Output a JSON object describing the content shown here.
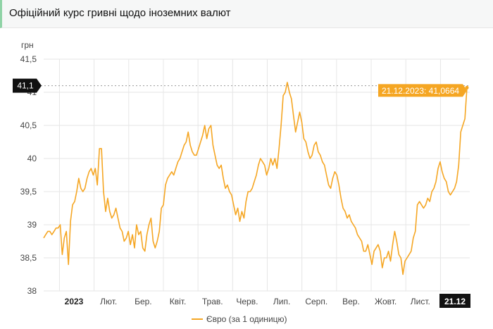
{
  "header": {
    "title": "Офіційний курс гривні щодо іноземних валют"
  },
  "chart_data": {
    "type": "line",
    "title": "",
    "ylabel": "грн",
    "xlabel": "",
    "ylim": [
      38,
      41.5
    ],
    "yticks": [
      "38",
      "38,5",
      "39",
      "39,5",
      "40",
      "40,5",
      "41",
      "41,5"
    ],
    "ytick_values": [
      38,
      38.5,
      39,
      39.5,
      40,
      40.5,
      41,
      41.5
    ],
    "xticks": [
      {
        "label": "2023",
        "bold": true
      },
      {
        "label": "Лют.",
        "bold": false
      },
      {
        "label": "Бер.",
        "bold": false
      },
      {
        "label": "Квіт.",
        "bold": false
      },
      {
        "label": "Трав.",
        "bold": false
      },
      {
        "label": "Черв.",
        "bold": false
      },
      {
        "label": "Лип.",
        "bold": false
      },
      {
        "label": "Серп.",
        "bold": false
      },
      {
        "label": "Вер.",
        "bold": false
      },
      {
        "label": "Жовт.",
        "bold": false
      },
      {
        "label": "Лист.",
        "bold": false
      },
      {
        "label": "21.12",
        "bold": true,
        "highlight": true
      }
    ],
    "grid": true,
    "legend_position": "bottom",
    "series": [
      {
        "name": "Євро (за 1 одиницю)",
        "color": "#f5a623",
        "values": [
          38.8,
          38.85,
          38.9,
          38.9,
          38.85,
          38.9,
          38.95,
          38.95,
          39.0,
          38.55,
          38.8,
          38.9,
          38.4,
          39.05,
          39.3,
          39.35,
          39.5,
          39.7,
          39.55,
          39.5,
          39.55,
          39.7,
          39.8,
          39.85,
          39.75,
          39.85,
          39.6,
          40.15,
          40.15,
          39.5,
          39.2,
          39.4,
          39.2,
          39.1,
          39.15,
          39.25,
          39.1,
          38.95,
          38.9,
          38.75,
          38.8,
          38.9,
          38.7,
          38.85,
          38.65,
          39.0,
          38.85,
          38.9,
          38.65,
          38.6,
          38.85,
          39.0,
          39.1,
          38.75,
          38.65,
          38.75,
          38.9,
          39.25,
          39.3,
          39.6,
          39.7,
          39.75,
          39.8,
          39.75,
          39.85,
          39.95,
          40.0,
          40.1,
          40.2,
          40.25,
          40.4,
          40.2,
          40.1,
          40.05,
          40.05,
          40.15,
          40.25,
          40.35,
          40.5,
          40.3,
          40.45,
          40.5,
          40.2,
          40.05,
          39.9,
          39.85,
          39.9,
          39.7,
          39.55,
          39.6,
          39.5,
          39.45,
          39.3,
          39.15,
          39.25,
          39.05,
          39.2,
          39.1,
          39.35,
          39.5,
          39.5,
          39.55,
          39.65,
          39.75,
          39.9,
          40.0,
          39.95,
          39.9,
          39.75,
          39.85,
          40.0,
          39.9,
          40.0,
          39.85,
          40.15,
          40.5,
          40.95,
          41.0,
          41.15,
          41.0,
          40.9,
          40.65,
          40.4,
          40.55,
          40.7,
          40.55,
          40.3,
          40.25,
          40.1,
          40.0,
          40.05,
          40.2,
          40.25,
          40.1,
          40.05,
          39.95,
          39.9,
          39.75,
          39.6,
          39.55,
          39.7,
          39.8,
          39.75,
          39.6,
          39.4,
          39.25,
          39.2,
          39.1,
          39.15,
          39.05,
          39.0,
          38.95,
          38.85,
          38.8,
          38.75,
          38.6,
          38.6,
          38.7,
          38.55,
          38.4,
          38.6,
          38.65,
          38.7,
          38.6,
          38.35,
          38.5,
          38.5,
          38.6,
          38.45,
          38.7,
          38.9,
          38.75,
          38.55,
          38.5,
          38.25,
          38.45,
          38.5,
          38.55,
          38.6,
          38.8,
          38.9,
          39.3,
          39.35,
          39.3,
          39.25,
          39.3,
          39.4,
          39.35,
          39.5,
          39.55,
          39.65,
          39.85,
          39.95,
          39.8,
          39.7,
          39.65,
          39.5,
          39.45,
          39.5,
          39.55,
          39.65,
          39.9,
          40.4,
          40.5,
          40.6,
          41.07
        ]
      }
    ],
    "tooltip": {
      "date": "21.12.2023",
      "value": "41,0664",
      "text": "21.12.2023: 41,0664"
    },
    "crosshair_label": "41,1",
    "crosshair_value": 41.1
  },
  "colors": {
    "line": "#f5a623",
    "grid": "#e6e6e6",
    "label_dark": "#111111",
    "tooltip_bg": "#f5a623"
  }
}
